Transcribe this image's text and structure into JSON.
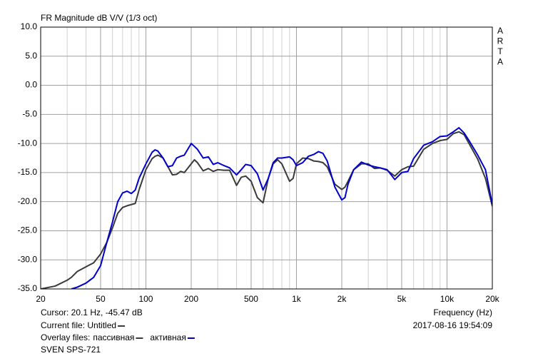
{
  "chart_data": {
    "type": "line",
    "title": "FR Magnitude dB V/V (1/3 oct)",
    "watermark": "ARTA",
    "xlabel": "Frequency (Hz)",
    "cursor": "Cursor: 20.1 Hz, -45.47 dB",
    "current_file": "Current file: Untitled",
    "overlay_label": "Overlay files:",
    "device": "SVEN SPS-721",
    "timestamp": "2017-08-16  19:54:09",
    "xscale": "log",
    "grid": true,
    "xlim": [
      20,
      20000
    ],
    "ylim": [
      -35,
      10
    ],
    "xticks": [
      20,
      50,
      100,
      200,
      500,
      {
        "value": 1000,
        "label": "1k"
      },
      {
        "value": 2000,
        "label": "2k"
      },
      {
        "value": 5000,
        "label": "5k"
      },
      {
        "value": 10000,
        "label": "10k"
      },
      {
        "value": 20000,
        "label": "20k"
      }
    ],
    "xminor": [
      30,
      40,
      60,
      70,
      80,
      90,
      300,
      400,
      600,
      700,
      800,
      900,
      3000,
      4000,
      6000,
      7000,
      8000,
      9000
    ],
    "yticks": [
      {
        "value": 10,
        "label": "10.0"
      },
      {
        "value": 5,
        "label": "5.0"
      },
      {
        "value": 0,
        "label": "0.0"
      },
      {
        "value": -5,
        "label": "-5.0"
      },
      {
        "value": -10,
        "label": "-10.0"
      },
      {
        "value": -15,
        "label": "-15.0"
      },
      {
        "value": -20,
        "label": "-20.0"
      },
      {
        "value": -25,
        "label": "-25.0"
      },
      {
        "value": -30,
        "label": "-30.0"
      },
      {
        "value": -35,
        "label": "-35.0"
      }
    ],
    "x": [
      20,
      25,
      30,
      32,
      35,
      40,
      45,
      50,
      55,
      60,
      65,
      70,
      75,
      80,
      85,
      90,
      100,
      110,
      115,
      120,
      130,
      140,
      150,
      160,
      170,
      180,
      200,
      210,
      220,
      240,
      260,
      280,
      300,
      330,
      360,
      400,
      430,
      460,
      500,
      550,
      600,
      650,
      700,
      750,
      800,
      900,
      950,
      1000,
      1100,
      1200,
      1300,
      1400,
      1500,
      1600,
      1800,
      2000,
      2100,
      2200,
      2400,
      2700,
      3000,
      3300,
      3600,
      4000,
      4500,
      5000,
      5500,
      6000,
      7000,
      8000,
      9000,
      10000,
      11000,
      12000,
      13000,
      14000,
      16000,
      18000,
      20000
    ],
    "series": [
      {
        "name": "пассивная",
        "color": "#3a3a3a",
        "values": [
          -35,
          -34.5,
          -33.5,
          -33,
          -32,
          -31.2,
          -30.5,
          -29,
          -27,
          -24.5,
          -22,
          -21,
          -20.7,
          -20.5,
          -20.3,
          -18,
          -14.5,
          -12.6,
          -12.2,
          -12,
          -12.5,
          -14,
          -15.4,
          -15.3,
          -14.8,
          -15,
          -13.5,
          -12.8,
          -13.3,
          -14.7,
          -14.3,
          -14.8,
          -14.5,
          -14.6,
          -14.6,
          -17.2,
          -15.8,
          -15.6,
          -16.5,
          -19.3,
          -20.2,
          -16,
          -13.5,
          -12.8,
          -13.5,
          -16.5,
          -16,
          -13.5,
          -12.5,
          -12.6,
          -13,
          -13.1,
          -13.3,
          -14,
          -17,
          -17.9,
          -17.5,
          -16.5,
          -14.5,
          -13.5,
          -13.5,
          -14.3,
          -14.2,
          -14.6,
          -15.6,
          -14.5,
          -14,
          -13.9,
          -11,
          -10,
          -9.5,
          -9.3,
          -8.3,
          -8,
          -8.5,
          -10,
          -12.7,
          -16,
          -20.8
        ]
      },
      {
        "name": "активная",
        "color": "#0000cc",
        "values": [
          null,
          null,
          null,
          -35,
          -34.7,
          -34,
          -33,
          -31,
          -27,
          -23.5,
          -20,
          -18.5,
          -18.2,
          -18.6,
          -18,
          -16,
          -13.5,
          -11.5,
          -11.1,
          -11.3,
          -12.5,
          -14,
          -13.8,
          -12.5,
          -12.2,
          -12,
          -10,
          -10.5,
          -11,
          -12.5,
          -12.3,
          -13.6,
          -13.3,
          -13.8,
          -14.2,
          -15.4,
          -14.5,
          -13.6,
          -13.8,
          -15.2,
          -18,
          -16,
          -13.3,
          -12.5,
          -12.5,
          -12.3,
          -12.8,
          -13.8,
          -13.3,
          -12.2,
          -11.9,
          -11.4,
          -11.7,
          -13,
          -17.5,
          -19.7,
          -19.3,
          -17,
          -14.5,
          -13.2,
          -13.7,
          -14,
          -14.2,
          -14.5,
          -16.2,
          -15,
          -14.8,
          -12.6,
          -10.3,
          -9.7,
          -8.8,
          -8.7,
          -8,
          -7.3,
          -8.2,
          -9.5,
          -12,
          -14.5,
          -20.5
        ]
      }
    ]
  }
}
